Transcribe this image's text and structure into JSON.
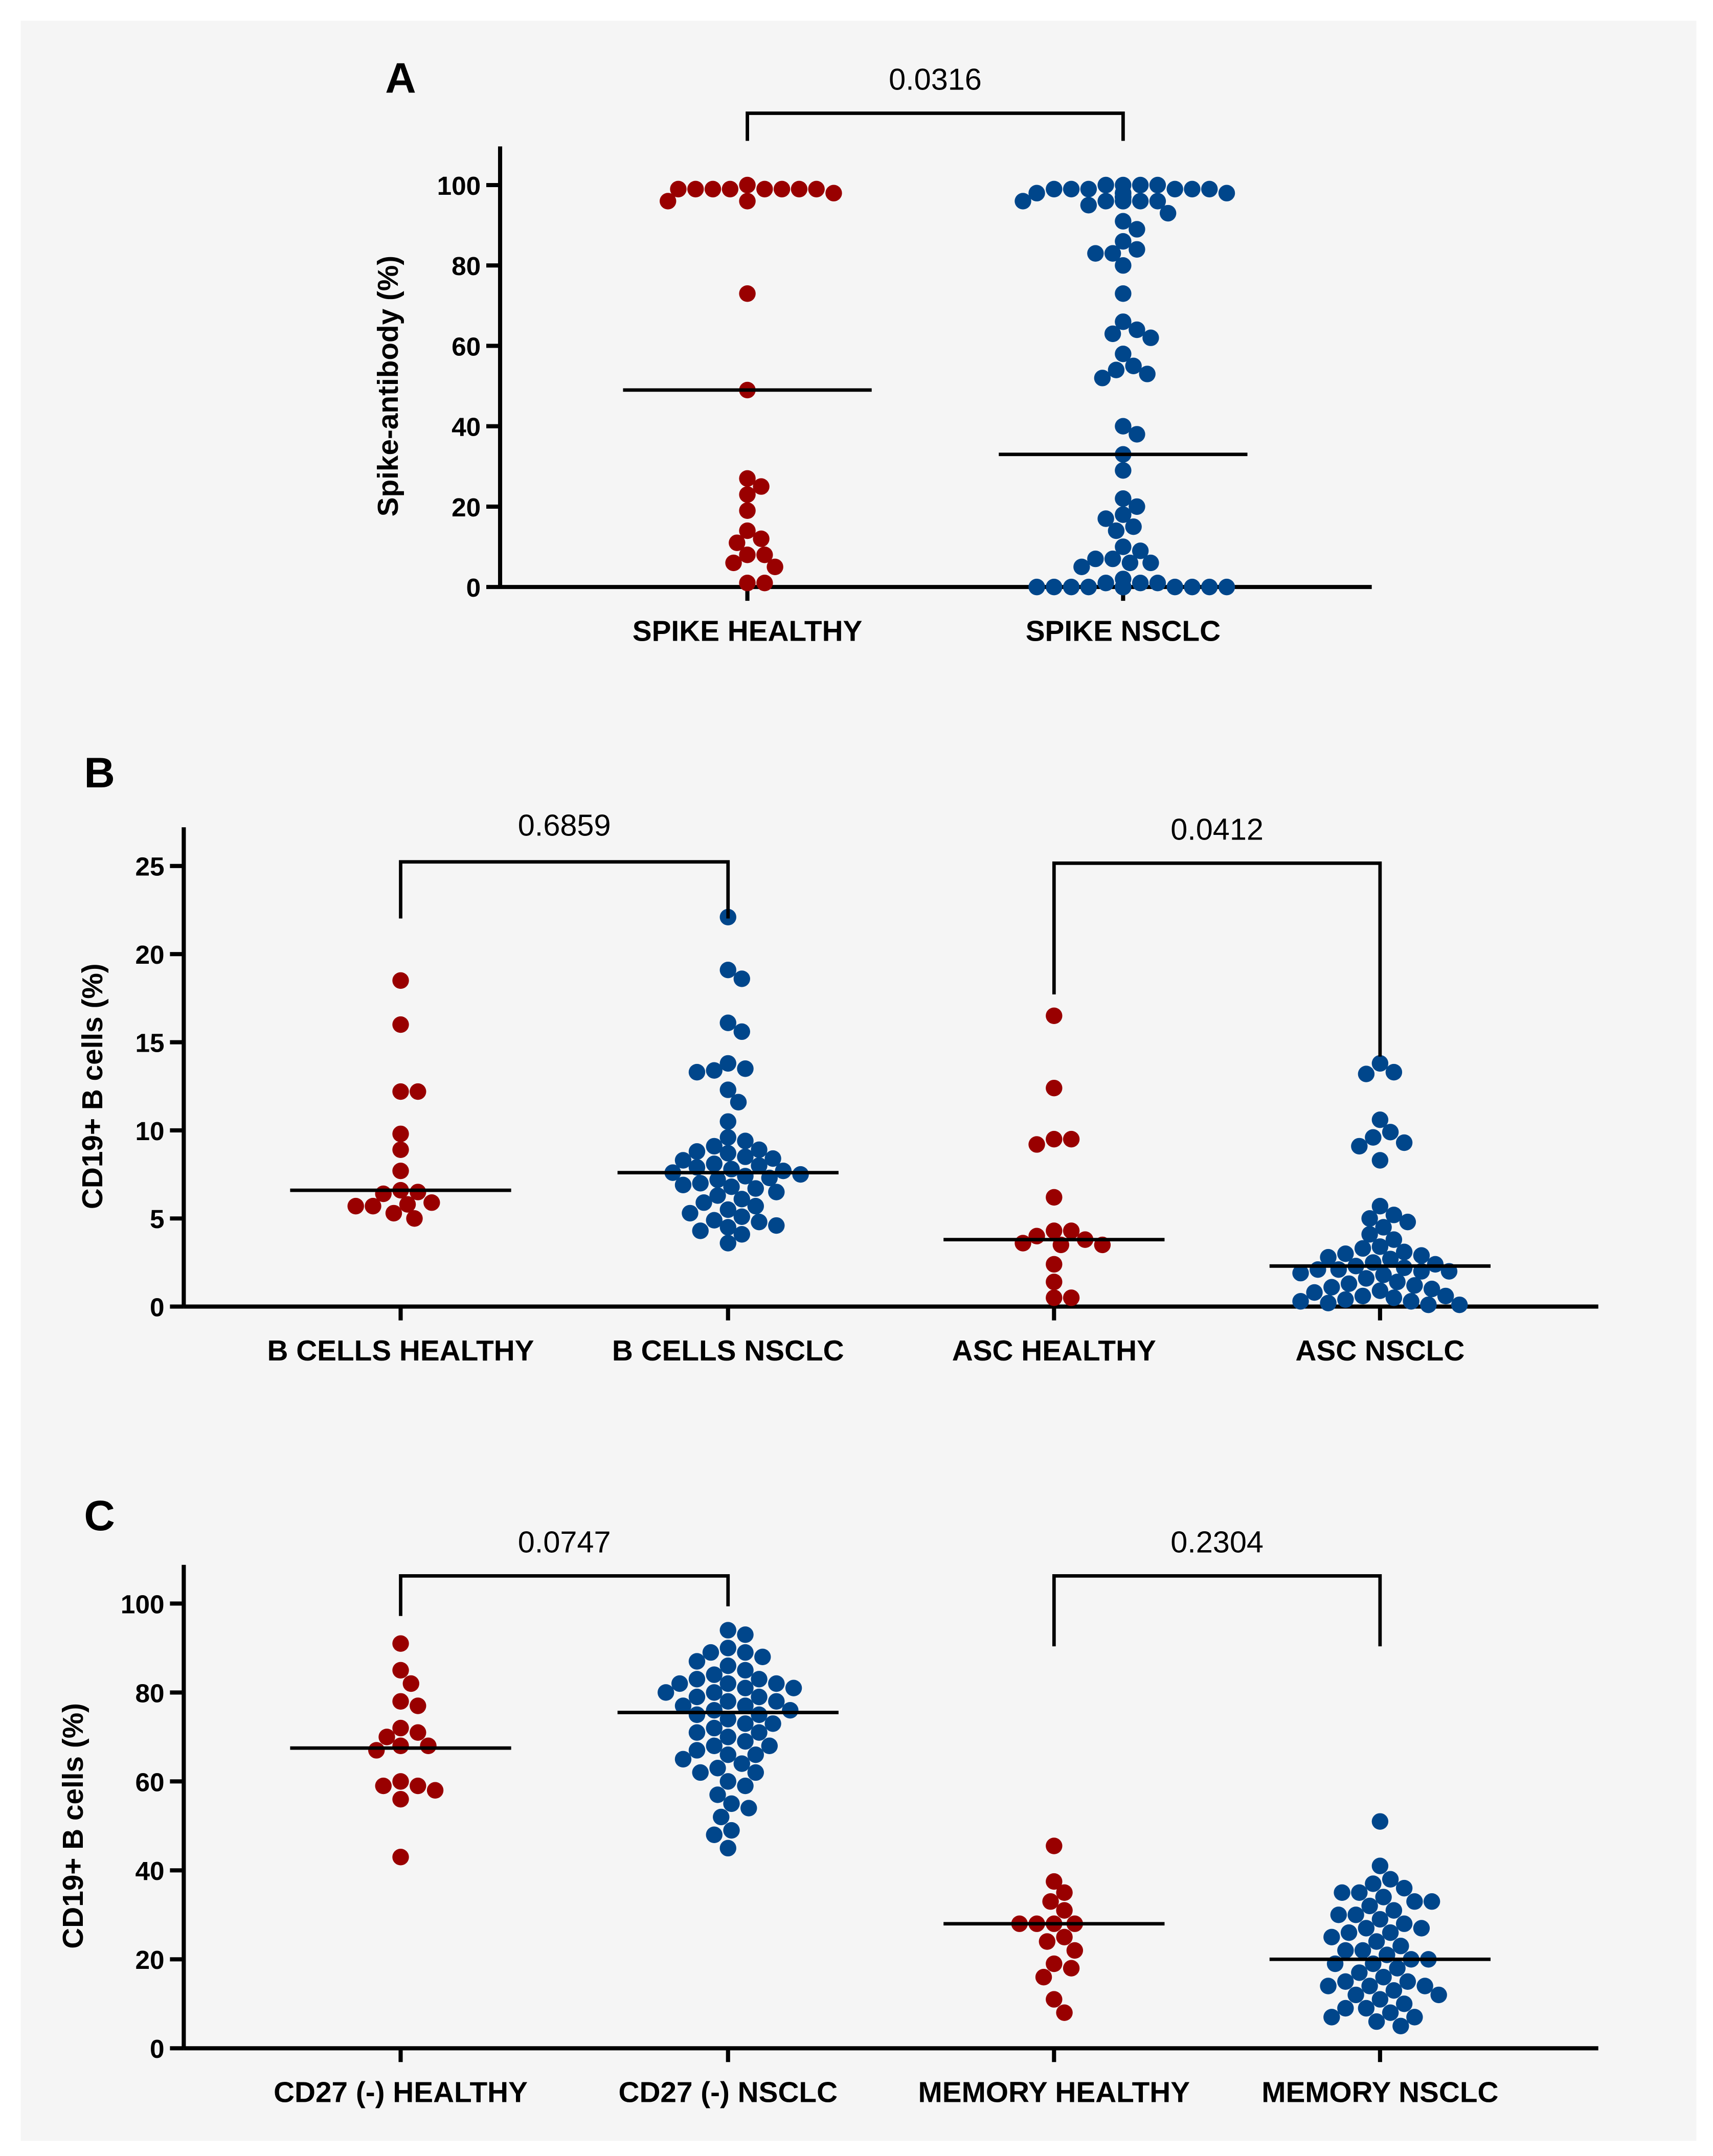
{
  "colors": {
    "healthy": "#990000",
    "nsclc": "#00468B",
    "background": "#F5F5F5"
  },
  "chart_data": [
    {
      "type": "scatter",
      "panel": "A",
      "ylabel": "Spike-antibody (%)",
      "ylim": [
        0,
        100
      ],
      "yticks": [
        0,
        20,
        40,
        60,
        80,
        100
      ],
      "categories": [
        "SPIKE HEALTHY",
        "SPIKE NSCLC"
      ],
      "series": [
        {
          "values": [
            98,
            99,
            100,
            99,
            99,
            96,
            96,
            99,
            99,
            99,
            99,
            99,
            73,
            49,
            27,
            25,
            23,
            19,
            14,
            12,
            11,
            8,
            8,
            6,
            5,
            1,
            1
          ],
          "mean": 49
        },
        {
          "values": [
            100,
            99,
            99,
            98,
            98,
            97,
            97,
            97,
            96,
            96,
            96,
            96,
            96,
            96,
            97,
            97,
            98,
            99,
            100,
            99,
            99,
            100,
            100,
            99,
            98,
            97,
            96,
            95,
            93,
            91,
            89,
            86,
            84,
            83,
            83,
            80,
            73,
            66,
            64,
            63,
            62,
            58,
            55,
            54,
            53,
            52,
            40,
            38,
            33,
            29,
            22,
            20,
            18,
            17,
            15,
            14,
            10,
            9,
            7,
            7,
            6,
            6,
            5,
            2,
            1,
            1,
            1,
            0,
            0,
            0,
            0,
            0,
            0,
            0,
            0,
            0,
            0,
            0,
            0,
            0,
            0,
            0,
            0,
            0,
            0,
            0,
            0,
            0,
            0
          ],
          "mean": 33
        }
      ],
      "comparisons": [
        {
          "between": [
            0,
            1
          ],
          "p": "0.0316"
        }
      ]
    },
    {
      "type": "scatter",
      "panel": "B",
      "ylabel": "CD19+ B cells (%)",
      "ylim": [
        0,
        25
      ],
      "yticks": [
        0,
        5,
        10,
        15,
        20,
        25
      ],
      "categories": [
        "B CELLS HEALTHY",
        "B CELLS NSCLC",
        "ASC HEALTHY",
        "ASC NSCLC"
      ],
      "series": [
        {
          "values": [
            18.5,
            16,
            12.2,
            12.2,
            9.8,
            8.9,
            7.7,
            6.6,
            6.5,
            6.4,
            5.9,
            5.8,
            5.7,
            5.7,
            5.3,
            5.0
          ],
          "mean": 6.6
        },
        {
          "values": [
            22.1,
            19.1,
            18.6,
            16.1,
            15.6,
            13.8,
            13.5,
            13.4,
            13.3,
            12.3,
            11.6,
            10.5,
            9.6,
            9.4,
            9.1,
            8.9,
            8.8,
            8.7,
            8.5,
            8.4,
            8.3,
            8.1,
            8.0,
            7.9,
            7.8,
            7.7,
            7.6,
            7.5,
            7.4,
            7.3,
            7.2,
            7.0,
            6.9,
            6.8,
            6.7,
            6.5,
            6.3,
            6.1,
            5.9,
            5.7,
            5.5,
            5.3,
            5.1,
            4.9,
            4.8,
            4.6,
            4.5,
            4.3,
            4.1,
            3.6
          ],
          "mean": 7.6
        },
        {
          "values": [
            16.5,
            12.4,
            9.5,
            9.5,
            9.2,
            6.2,
            4.3,
            4.3,
            4.0,
            3.8,
            3.6,
            3.5,
            3.5,
            2.4,
            1.4,
            0.5,
            0.5
          ],
          "mean": 3.8
        },
        {
          "values": [
            13.8,
            13.3,
            13.2,
            10.6,
            9.9,
            9.6,
            9.3,
            9.1,
            8.3,
            5.7,
            5.2,
            5.0,
            4.8,
            4.5,
            4.1,
            3.8,
            3.4,
            3.3,
            3.1,
            3.0,
            2.9,
            2.8,
            2.7,
            2.5,
            2.4,
            2.3,
            2.2,
            2.1,
            2.1,
            2.0,
            2.0,
            1.9,
            1.8,
            1.6,
            1.4,
            1.3,
            1.2,
            1.1,
            1.0,
            0.9,
            0.8,
            0.6,
            0.6,
            0.5,
            0.4,
            0.3,
            0.3,
            0.2,
            0.1,
            0.1
          ],
          "mean": 2.3
        }
      ],
      "comparisons": [
        {
          "between": [
            0,
            1
          ],
          "p": "0.6859"
        },
        {
          "between": [
            2,
            3
          ],
          "p": "0.0412"
        }
      ]
    },
    {
      "type": "scatter",
      "panel": "C",
      "ylabel": "CD19+ B cells (%)",
      "ylim": [
        0,
        100
      ],
      "yticks": [
        0,
        20,
        40,
        60,
        80,
        100
      ],
      "categories": [
        "CD27 (-) HEALTHY",
        "CD27 (-) NSCLC",
        "MEMORY HEALTHY",
        "MEMORY NSCLC"
      ],
      "series": [
        {
          "values": [
            91,
            85,
            82,
            78,
            77,
            72,
            71,
            70,
            68,
            68,
            67,
            60,
            59,
            59,
            58,
            56,
            43
          ],
          "mean": 67.5
        },
        {
          "values": [
            94,
            93,
            90,
            89,
            89,
            88,
            87,
            86,
            85,
            84,
            83,
            83,
            82,
            82,
            82,
            81,
            81,
            80,
            80,
            79,
            79,
            78,
            78,
            77,
            77,
            76,
            76,
            75,
            75,
            74,
            73,
            73,
            72,
            71,
            71,
            70,
            69,
            68,
            68,
            67,
            66,
            66,
            65,
            64,
            63,
            62,
            62,
            60,
            59,
            57,
            55,
            54,
            52,
            49,
            48,
            45
          ],
          "mean": 75.5
        },
        {
          "values": [
            45.5,
            37.5,
            35,
            33,
            31,
            28,
            28,
            28,
            28,
            25,
            24,
            22,
            19,
            18,
            16,
            11,
            8
          ],
          "mean": 28
        },
        {
          "values": [
            51,
            41,
            38,
            37,
            36,
            35,
            35,
            34,
            33,
            33,
            32,
            31,
            30,
            30,
            29,
            28,
            27,
            27,
            26,
            26,
            25,
            24,
            23,
            22,
            22,
            21,
            20,
            20,
            19,
            19,
            18,
            17,
            16,
            15,
            15,
            14,
            14,
            14,
            13,
            12,
            12,
            11,
            10,
            9,
            9,
            8,
            7,
            7,
            6,
            5
          ],
          "mean": 20
        }
      ],
      "comparisons": [
        {
          "between": [
            0,
            1
          ],
          "p": "0.0747"
        },
        {
          "between": [
            2,
            3
          ],
          "p": "0.2304"
        }
      ]
    }
  ]
}
